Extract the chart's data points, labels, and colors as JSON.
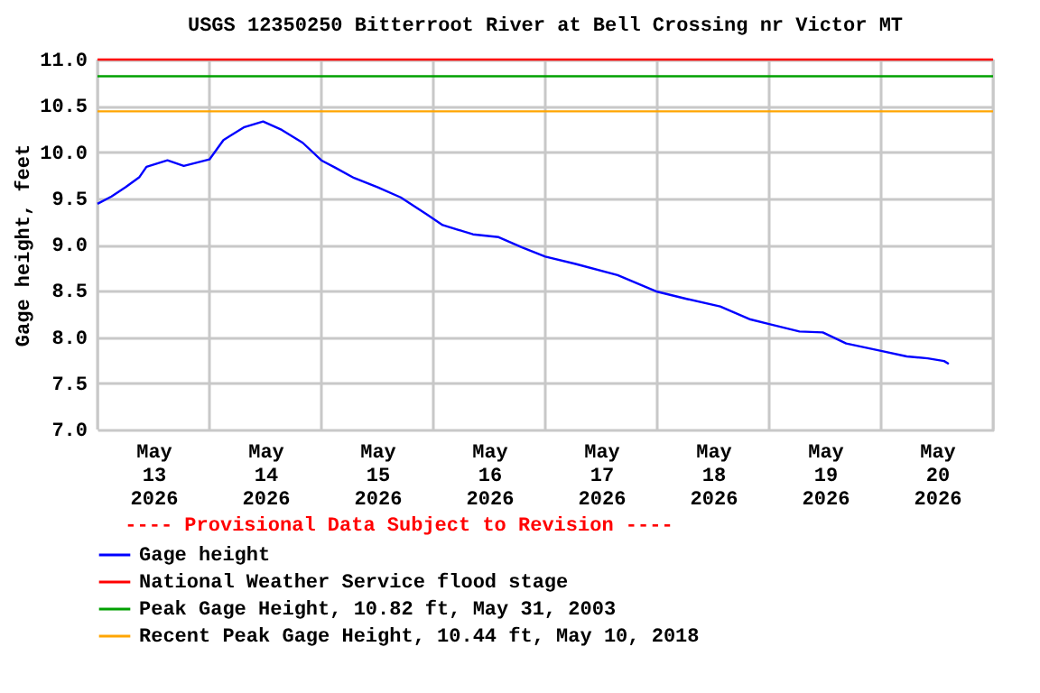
{
  "chart_data": {
    "type": "line",
    "title": "USGS 12350250 Bitterroot River at Bell Crossing nr Victor MT",
    "ylabel": "Gage height, feet",
    "annotations": [
      "---- Provisional Data Subject to Revision ----"
    ],
    "x": [
      "2026-05-13T00:00",
      "2026-05-13T03:00",
      "2026-05-13T06:00",
      "2026-05-13T09:00",
      "2026-05-13T10:30",
      "2026-05-13T15:00",
      "2026-05-13T18:30",
      "2026-05-14T00:00",
      "2026-05-14T03:00",
      "2026-05-14T07:30",
      "2026-05-14T11:30",
      "2026-05-14T15:30",
      "2026-05-14T20:00",
      "2026-05-15T00:00",
      "2026-05-15T03:00",
      "2026-05-15T07:00",
      "2026-05-15T12:00",
      "2026-05-15T17:00",
      "2026-05-15T22:30",
      "2026-05-16T02:00",
      "2026-05-16T08:30",
      "2026-05-16T14:00",
      "2026-05-16T19:00",
      "2026-05-17T00:00",
      "2026-05-17T06:30",
      "2026-05-17T15:30",
      "2026-05-18T00:00",
      "2026-05-18T06:30",
      "2026-05-18T13:30",
      "2026-05-18T20:00",
      "2026-05-19T00:00",
      "2026-05-19T06:30",
      "2026-05-19T11:30",
      "2026-05-19T16:30",
      "2026-05-20T00:00",
      "2026-05-20T05:30",
      "2026-05-20T10:00",
      "2026-05-20T13:30",
      "2026-05-20T14:30"
    ],
    "series": [
      {
        "name": "Gage height",
        "color": "#0000ff",
        "values": [
          9.44,
          9.52,
          9.62,
          9.73,
          9.84,
          9.91,
          9.85,
          9.92,
          10.13,
          10.27,
          10.33,
          10.24,
          10.1,
          9.91,
          9.83,
          9.72,
          9.62,
          9.51,
          9.33,
          9.21,
          9.11,
          9.08,
          8.97,
          8.87,
          8.79,
          8.67,
          8.49,
          8.41,
          8.33,
          8.19,
          8.14,
          8.06,
          8.05,
          7.93,
          7.85,
          7.79,
          7.77,
          7.74,
          7.71
        ]
      }
    ],
    "ref_lines": [
      {
        "axis": "y",
        "value": 11.0,
        "label": "National Weather Service flood stage",
        "color": "#ff0000"
      },
      {
        "axis": "y",
        "value": 10.82,
        "label": "Peak Gage Height, 10.82 ft, May 31, 2003",
        "color": "#00a000"
      },
      {
        "axis": "y",
        "value": 10.44,
        "label": "Recent Peak Gage Height, 10.44 ft, May 10, 2018",
        "color": "#ffa500"
      }
    ],
    "xlim": [
      "2026-05-13T00:00",
      "2026-05-21T00:00"
    ],
    "xticks": [
      {
        "value": "2026-05-13T00:00",
        "label": null
      },
      {
        "value": "2026-05-13T12:00",
        "label": "May 13 2026"
      },
      {
        "value": "2026-05-14T00:00",
        "label": null
      },
      {
        "value": "2026-05-14T12:00",
        "label": "May 14 2026"
      },
      {
        "value": "2026-05-15T00:00",
        "label": null
      },
      {
        "value": "2026-05-15T12:00",
        "label": "May 15 2026"
      },
      {
        "value": "2026-05-16T00:00",
        "label": null
      },
      {
        "value": "2026-05-16T12:00",
        "label": "May 16 2026"
      },
      {
        "value": "2026-05-17T00:00",
        "label": null
      },
      {
        "value": "2026-05-17T12:00",
        "label": "May 17 2026"
      },
      {
        "value": "2026-05-18T00:00",
        "label": null
      },
      {
        "value": "2026-05-18T12:00",
        "label": "May 18 2026"
      },
      {
        "value": "2026-05-19T00:00",
        "label": null
      },
      {
        "value": "2026-05-19T12:00",
        "label": "May 19 2026"
      },
      {
        "value": "2026-05-20T00:00",
        "label": null
      },
      {
        "value": "2026-05-20T12:00",
        "label": "May 20 2026"
      },
      {
        "value": "2026-05-21T00:00",
        "label": null
      }
    ],
    "ylim": [
      7.0,
      11.0
    ],
    "yticks": [
      {
        "value": 7,
        "label": "7.0"
      },
      7.5,
      {
        "value": 8,
        "label": "8.0"
      },
      8.5,
      {
        "value": 9,
        "label": "9.0"
      },
      9.5,
      {
        "value": 10,
        "label": "10.0"
      },
      10.5,
      {
        "value": 11,
        "label": "11.0"
      }
    ],
    "grid": true,
    "legend": "bottom",
    "marker": "none",
    "line_style": "solid"
  }
}
